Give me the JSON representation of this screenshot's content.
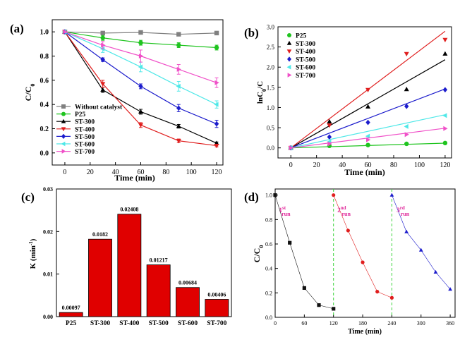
{
  "chart_data": [
    {
      "panel": "(a)",
      "type": "line",
      "xlabel": "Time (min)",
      "ylabel": "C/C0",
      "ylabel_main": "C/C",
      "ylabel_sub": "0",
      "xlim": [
        -10,
        125
      ],
      "ylim": [
        -0.1,
        1.1
      ],
      "xticks": [
        0,
        20,
        40,
        60,
        80,
        100,
        120
      ],
      "yticks": [
        0.0,
        0.2,
        0.4,
        0.6,
        0.8,
        1.0
      ],
      "ytick_labels": [
        "0.0",
        "0.2",
        "0.4",
        "0.6",
        "0.8",
        "1.0"
      ],
      "legend_position": "bottom-left",
      "x": [
        0,
        30,
        60,
        90,
        120
      ],
      "series": [
        {
          "name": "Without catalyst",
          "color": "#808080",
          "marker": "square",
          "values": [
            1.0,
            0.99,
            0.995,
            0.98,
            0.99
          ],
          "err": [
            0.005,
            0.008,
            0.008,
            0.008,
            0.008
          ]
        },
        {
          "name": "P25",
          "color": "#1fc41f",
          "marker": "circle",
          "values": [
            1.0,
            0.95,
            0.91,
            0.89,
            0.87
          ],
          "err": [
            0.005,
            0.02,
            0.02,
            0.02,
            0.02
          ]
        },
        {
          "name": "ST-300",
          "color": "#000000",
          "marker": "triangle-up",
          "values": [
            1.0,
            0.52,
            0.34,
            0.22,
            0.08
          ],
          "err": [
            0.005,
            0.02,
            0.02,
            0.015,
            0.01
          ]
        },
        {
          "name": "ST-400",
          "color": "#e01e1e",
          "marker": "triangle-down",
          "values": [
            1.0,
            0.57,
            0.23,
            0.1,
            0.06
          ],
          "err": [
            0.005,
            0.03,
            0.02,
            0.015,
            0.01
          ]
        },
        {
          "name": "ST-500",
          "color": "#1c1ccc",
          "marker": "diamond",
          "values": [
            1.0,
            0.77,
            0.55,
            0.37,
            0.24
          ],
          "err": [
            0.005,
            0.015,
            0.02,
            0.03,
            0.03
          ]
        },
        {
          "name": "ST-600",
          "color": "#4fe8e8",
          "marker": "triangle-left",
          "values": [
            1.0,
            0.86,
            0.71,
            0.55,
            0.4
          ],
          "err": [
            0.005,
            0.03,
            0.04,
            0.04,
            0.03
          ]
        },
        {
          "name": "ST-700",
          "color": "#f050c8",
          "marker": "triangle-right",
          "values": [
            1.0,
            0.89,
            0.8,
            0.69,
            0.58
          ],
          "err": [
            0.005,
            0.03,
            0.05,
            0.04,
            0.04
          ]
        }
      ]
    },
    {
      "panel": "(b)",
      "type": "scatter",
      "xlabel": "Time (min)",
      "ylabel": "lnC0/C",
      "ylabel_a": "lnC",
      "ylabel_sub": "0",
      "ylabel_b": "/C",
      "xlim": [
        -10,
        125
      ],
      "ylim": [
        -0.25,
        3.0
      ],
      "xticks": [
        0,
        20,
        40,
        60,
        80,
        100,
        120
      ],
      "yticks": [
        0.0,
        0.5,
        1.0,
        1.5,
        2.0,
        2.5,
        3.0
      ],
      "ytick_labels": [
        "0.0",
        "0.5",
        "1.0",
        "1.5",
        "2.0",
        "2.5",
        "3.0"
      ],
      "legend_position": "top-left",
      "x": [
        0,
        30,
        60,
        90,
        120
      ],
      "series": [
        {
          "name": "P25",
          "color": "#1fc41f",
          "marker": "circle",
          "values": [
            0.0,
            0.05,
            0.07,
            0.1,
            0.12
          ],
          "slope": 0.00097
        },
        {
          "name": "ST-300",
          "color": "#000000",
          "marker": "triangle-up",
          "values": [
            0.0,
            0.65,
            1.02,
            1.45,
            2.33
          ],
          "slope": 0.0182
        },
        {
          "name": "ST-400",
          "color": "#e01e1e",
          "marker": "triangle-down",
          "values": [
            0.0,
            0.56,
            1.44,
            2.33,
            2.68
          ],
          "slope": 0.02408
        },
        {
          "name": "ST-500",
          "color": "#1c1ccc",
          "marker": "diamond",
          "values": [
            0.0,
            0.27,
            0.63,
            1.03,
            1.44
          ],
          "slope": 0.01217
        },
        {
          "name": "ST-600",
          "color": "#4fe8e8",
          "marker": "triangle-left",
          "values": [
            0.0,
            0.15,
            0.29,
            0.53,
            0.8
          ],
          "slope": 0.00684
        },
        {
          "name": "ST-700",
          "color": "#f050c8",
          "marker": "triangle-right",
          "values": [
            0.0,
            0.1,
            0.2,
            0.33,
            0.48
          ],
          "slope": 0.00406
        }
      ]
    },
    {
      "panel": "(c)",
      "type": "bar",
      "xlabel": "",
      "ylabel": "K (min-1)",
      "ylabel_main": "K (min",
      "ylabel_sup": "-1",
      "ylabel_end": ")",
      "ylim": [
        0.0,
        0.03
      ],
      "yticks": [
        0.0,
        0.01,
        0.02,
        0.03
      ],
      "ytick_labels": [
        "0.00",
        "0.01",
        "0.02",
        "0.03"
      ],
      "bar_color": "#e00000",
      "categories": [
        "P25",
        "ST-300",
        "ST-400",
        "ST-500",
        "ST-600",
        "ST-700"
      ],
      "values": [
        0.00097,
        0.0182,
        0.02408,
        0.01217,
        0.00684,
        0.00406
      ],
      "value_labels": [
        "0.00097",
        "0.0182",
        "0.02408",
        "0.01217",
        "0.00684",
        "0.00406"
      ]
    },
    {
      "panel": "(d)",
      "type": "line",
      "xlabel": "Time (min)",
      "ylabel": "C/C0",
      "ylabel_main": "C/C",
      "ylabel_sub": "0",
      "xlim": [
        0,
        370
      ],
      "ylim": [
        0.0,
        1.05
      ],
      "xticks": [
        0,
        60,
        120,
        180,
        240,
        300,
        360
      ],
      "yticks": [
        0.0,
        0.2,
        0.4,
        0.6,
        0.8,
        1.0
      ],
      "ytick_labels": [
        "0.0",
        "0.2",
        "0.4",
        "0.6",
        "0.8",
        "1.0"
      ],
      "vlines": [
        120,
        240
      ],
      "vline_color": "#3bd43b",
      "series": [
        {
          "name": "1st run",
          "label_num": "1",
          "label_sup": "st",
          "label_run": "run",
          "label_x": 8,
          "color": "#111111",
          "marker": "square",
          "x": [
            0,
            30,
            60,
            90,
            120
          ],
          "values": [
            1.0,
            0.61,
            0.24,
            0.1,
            0.07
          ]
        },
        {
          "name": "2nd run",
          "label_num": "2",
          "label_sup": "nd",
          "label_run": "run",
          "label_x": 128,
          "color": "#e01e1e",
          "marker": "circle",
          "x": [
            120,
            150,
            180,
            210,
            240
          ],
          "values": [
            1.0,
            0.71,
            0.45,
            0.21,
            0.16
          ]
        },
        {
          "name": "3rd run",
          "label_num": "3",
          "label_sup": "rd",
          "label_run": "run",
          "label_x": 250,
          "color": "#1c1ccc",
          "marker": "triangle-up",
          "x": [
            240,
            270,
            300,
            330,
            360
          ],
          "values": [
            1.0,
            0.7,
            0.55,
            0.37,
            0.23
          ]
        }
      ],
      "run_label_color": "#e0289a",
      "run_label_y": 0.86
    }
  ]
}
